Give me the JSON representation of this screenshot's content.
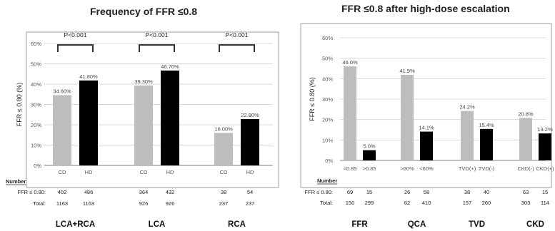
{
  "left_title": "Frequency of FFR ≤0.8",
  "right_title": "FFR ≤0.8 after high-dose escalation",
  "colors": {
    "gray": "#bdbdbd",
    "black": "#000000",
    "grid": "#d9d9d9",
    "frame": "#9e9e9e"
  },
  "chart_data": [
    {
      "type": "bar",
      "title": "Frequency of FFR ≤0.8",
      "ylabel": "FFR ≤ 0.80 (%)",
      "ylim": [
        0,
        60
      ],
      "yticks": [
        "0%",
        "10%",
        "20%",
        "30%",
        "40%",
        "50%",
        "60%"
      ],
      "grid": true,
      "groups": [
        {
          "name": "LCA+RCA",
          "significance": "P<0.001",
          "bars": [
            {
              "category": "CD",
              "value": 34.6,
              "label": "34.60%",
              "color": "#bdbdbd"
            },
            {
              "category": "HD",
              "value": 41.8,
              "label": "41.80%",
              "color": "#000000"
            }
          ],
          "number": {
            "ffr": [
              "402",
              "486"
            ],
            "total": [
              "1163",
              "1163"
            ]
          }
        },
        {
          "name": "LCA",
          "significance": "P<0.001",
          "bars": [
            {
              "category": "CD",
              "value": 39.3,
              "label": "39.30%",
              "color": "#bdbdbd"
            },
            {
              "category": "HD",
              "value": 46.7,
              "label": "46.70%",
              "color": "#000000"
            }
          ],
          "number": {
            "ffr": [
              "364",
              "432"
            ],
            "total": [
              "926",
              "926"
            ]
          }
        },
        {
          "name": "RCA",
          "significance": "P<0.001",
          "bars": [
            {
              "category": "CD",
              "value": 16.0,
              "label": "16.00%",
              "color": "#bdbdbd"
            },
            {
              "category": "HD",
              "value": 22.8,
              "label": "22.80%",
              "color": "#000000"
            }
          ],
          "number": {
            "ffr": [
              "38",
              "54"
            ],
            "total": [
              "237",
              "237"
            ]
          }
        }
      ],
      "table": {
        "heading": "Number",
        "row1": "FFR ≤ 0.80:",
        "row2": "Total:"
      }
    },
    {
      "type": "bar",
      "title": "FFR ≤0.8 after high-dose escalation",
      "ylabel": "FFR ≤ 0.80 (%)",
      "ylim": [
        0,
        60
      ],
      "yticks": [
        "0%",
        "10%",
        "20%",
        "30%",
        "40%",
        "50%",
        "60%"
      ],
      "grid": true,
      "groups": [
        {
          "name": "FFR",
          "bars": [
            {
              "category": "<0.85",
              "value": 46.0,
              "label": "46.0%",
              "color": "#bdbdbd"
            },
            {
              "category": ">0.85",
              "value": 5.0,
              "label": "5.0%",
              "color": "#000000"
            }
          ],
          "number": {
            "ffr": [
              "69",
              "15"
            ],
            "total": [
              "150",
              "299"
            ]
          }
        },
        {
          "name": "QCA",
          "bars": [
            {
              "category": ">60%",
              "value": 41.9,
              "label": "41.9%",
              "color": "#bdbdbd"
            },
            {
              "category": "<60%",
              "value": 14.1,
              "label": "14.1%",
              "color": "#000000"
            }
          ],
          "number": {
            "ffr": [
              "26",
              "58"
            ],
            "total": [
              "62",
              "410"
            ]
          }
        },
        {
          "name": "TVD",
          "bars": [
            {
              "category": "TVD(+)",
              "value": 24.2,
              "label": "24.2%",
              "color": "#bdbdbd"
            },
            {
              "category": "TVD(-)",
              "value": 15.4,
              "label": "15.4%",
              "color": "#000000"
            }
          ],
          "number": {
            "ffr": [
              "38",
              "40"
            ],
            "total": [
              "157",
              "260"
            ]
          }
        },
        {
          "name": "CKD",
          "bars": [
            {
              "category": "CKD(-)",
              "value": 20.8,
              "label": "20.8%",
              "color": "#bdbdbd"
            },
            {
              "category": "CKD(+)",
              "value": 13.2,
              "label": "13.2%",
              "color": "#000000"
            }
          ],
          "number": {
            "ffr": [
              "63",
              "15"
            ],
            "total": [
              "303",
              "114"
            ]
          }
        }
      ],
      "table": {
        "heading": "Number",
        "row1": "FFR ≤ 0.80:",
        "row2": "Total:"
      }
    }
  ]
}
